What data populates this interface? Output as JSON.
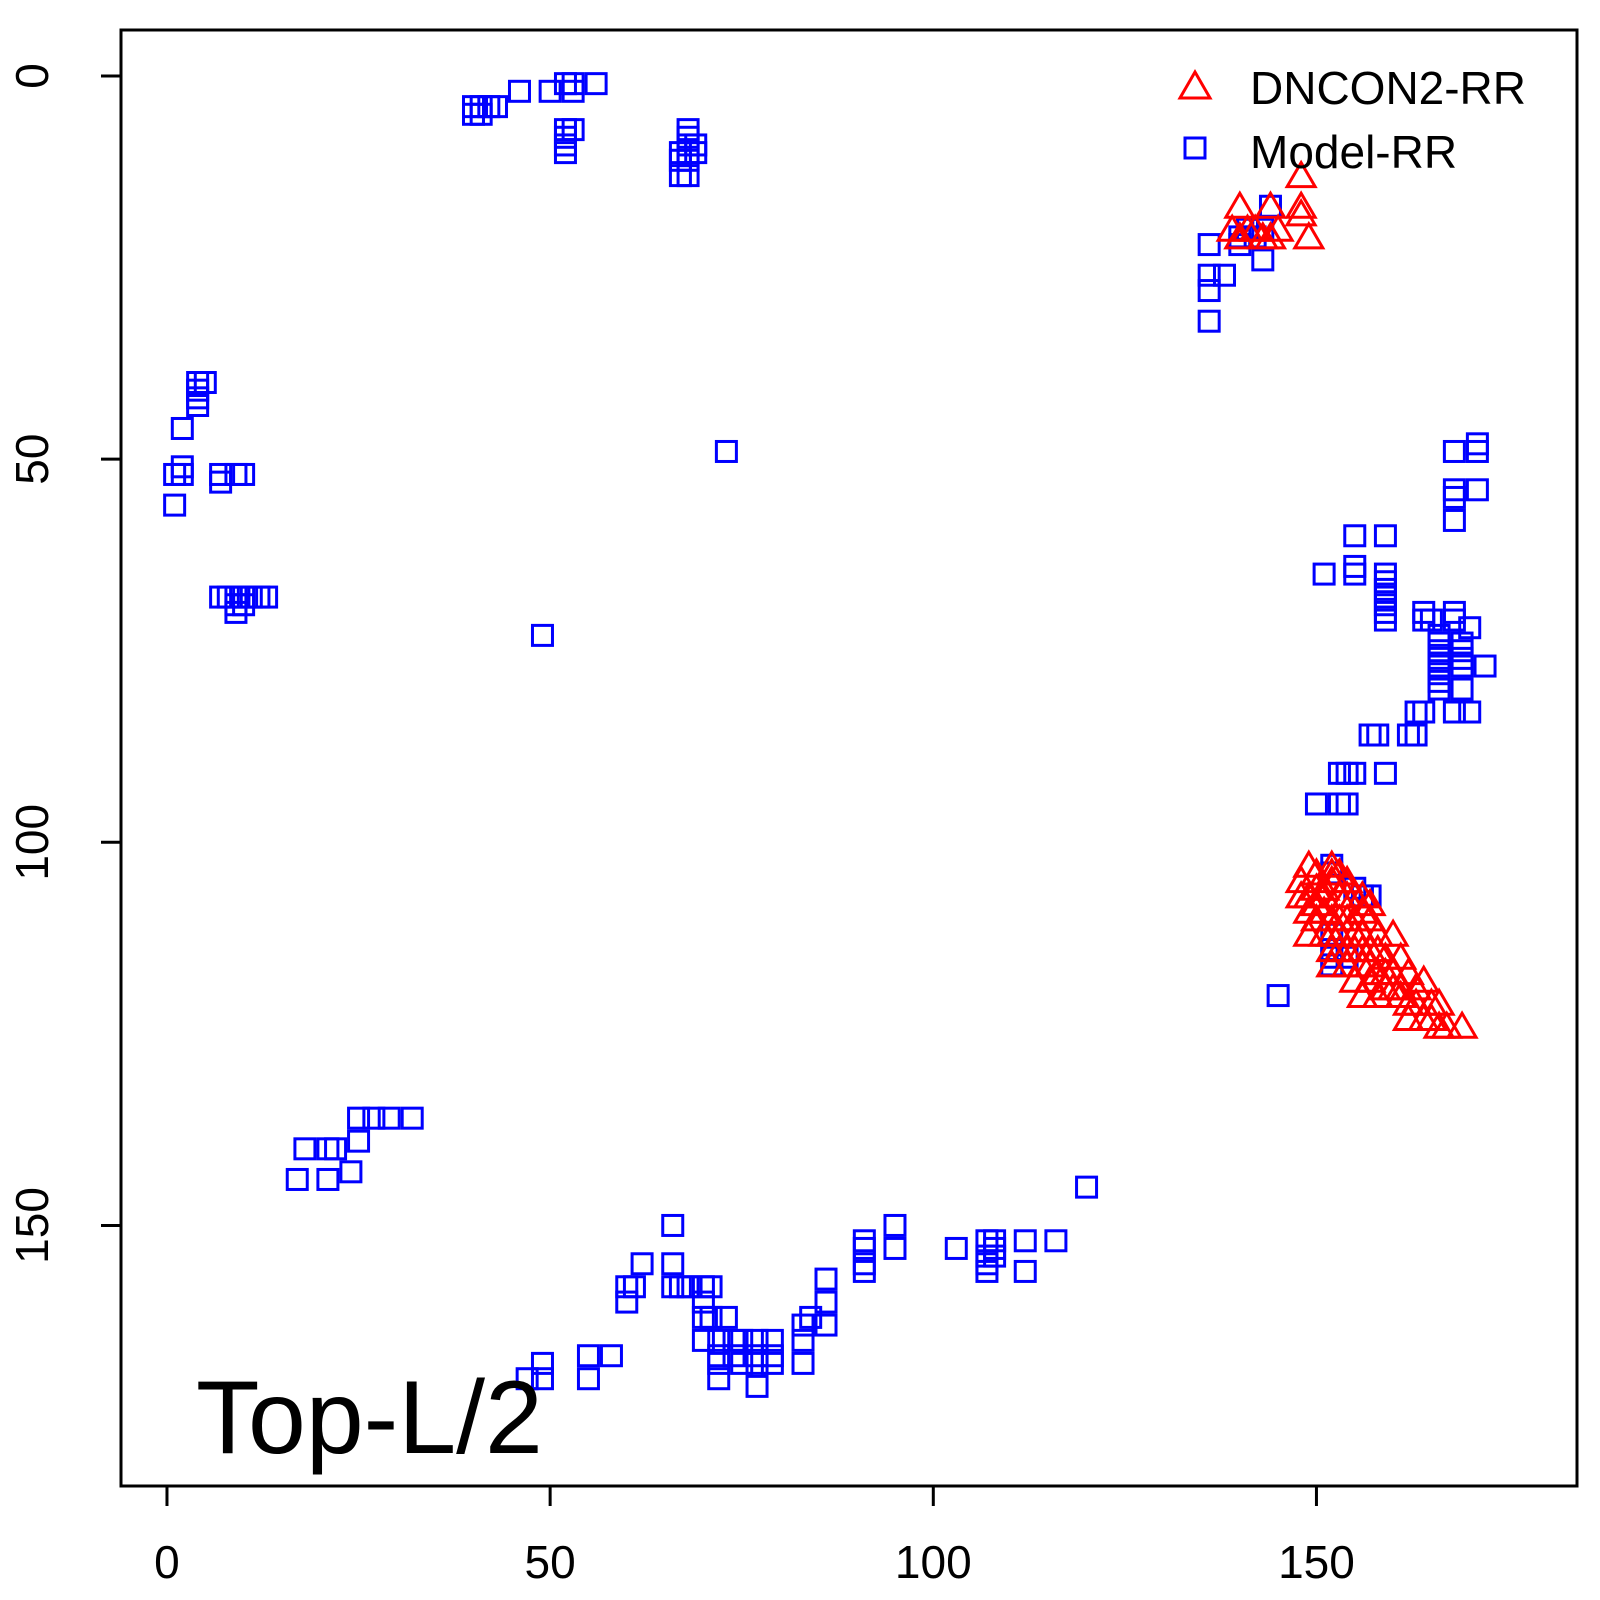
{
  "chart_data": {
    "type": "scatter",
    "title": "",
    "xlabel": "",
    "ylabel": "",
    "plot_label": "Top-L/2",
    "xlim": [
      -6,
      184
    ],
    "ylim": [
      -6,
      184
    ],
    "y_reversed": true,
    "x_ticks": [
      0,
      50,
      100,
      150
    ],
    "y_ticks": [
      0,
      50,
      100,
      150
    ],
    "grid": false,
    "legend_position": "top-right",
    "series": [
      {
        "name": "DNCON2-RR",
        "marker": "triangle",
        "color": "#ff0000",
        "points": [
          [
            148,
            13
          ],
          [
            140,
            17
          ],
          [
            144,
            17
          ],
          [
            148,
            17
          ],
          [
            148,
            18
          ],
          [
            139,
            20
          ],
          [
            141,
            20
          ],
          [
            142,
            20
          ],
          [
            145,
            20
          ],
          [
            149,
            21
          ],
          [
            140,
            21
          ],
          [
            143,
            21
          ],
          [
            144,
            21
          ],
          [
            149,
            103
          ],
          [
            150,
            104
          ],
          [
            152,
            103
          ],
          [
            152,
            104
          ],
          [
            153,
            104
          ],
          [
            148,
            105
          ],
          [
            150,
            106
          ],
          [
            151,
            106
          ],
          [
            152,
            105
          ],
          [
            154,
            105
          ],
          [
            148,
            107
          ],
          [
            149,
            107
          ],
          [
            150,
            108
          ],
          [
            151,
            107
          ],
          [
            153,
            107
          ],
          [
            154,
            107
          ],
          [
            155,
            107
          ],
          [
            156,
            107
          ],
          [
            157,
            108
          ],
          [
            149,
            109
          ],
          [
            150,
            110
          ],
          [
            151,
            109
          ],
          [
            152,
            110
          ],
          [
            153,
            110
          ],
          [
            154,
            110
          ],
          [
            155,
            110
          ],
          [
            156,
            109
          ],
          [
            157,
            110
          ],
          [
            149,
            112
          ],
          [
            151,
            112
          ],
          [
            152,
            112
          ],
          [
            153,
            112
          ],
          [
            155,
            112
          ],
          [
            156,
            112
          ],
          [
            158,
            112
          ],
          [
            160,
            112
          ],
          [
            152,
            114
          ],
          [
            153,
            114
          ],
          [
            154,
            114
          ],
          [
            155,
            114
          ],
          [
            156,
            114
          ],
          [
            157,
            114
          ],
          [
            158,
            114
          ],
          [
            159,
            115
          ],
          [
            161,
            115
          ],
          [
            152,
            116
          ],
          [
            154,
            116
          ],
          [
            156,
            116
          ],
          [
            157,
            116
          ],
          [
            158,
            117
          ],
          [
            159,
            117
          ],
          [
            160,
            117
          ],
          [
            162,
            117
          ],
          [
            155,
            118
          ],
          [
            157,
            118
          ],
          [
            159,
            119
          ],
          [
            160,
            119
          ],
          [
            161,
            119
          ],
          [
            163,
            119
          ],
          [
            164,
            118
          ],
          [
            156,
            120
          ],
          [
            158,
            120
          ],
          [
            161,
            120
          ],
          [
            162,
            121
          ],
          [
            163,
            121
          ],
          [
            165,
            121
          ],
          [
            166,
            121
          ],
          [
            162,
            123
          ],
          [
            164,
            123
          ],
          [
            165,
            123
          ],
          [
            166,
            124
          ],
          [
            167,
            124
          ],
          [
            169,
            124
          ]
        ]
      },
      {
        "name": "Model-RR",
        "marker": "square",
        "color": "#0000ff",
        "points": [
          [
            40,
            4
          ],
          [
            41,
            4
          ],
          [
            42,
            4
          ],
          [
            43,
            4
          ],
          [
            40,
            5
          ],
          [
            41,
            5
          ],
          [
            46,
            2
          ],
          [
            50,
            2
          ],
          [
            52,
            1
          ],
          [
            53,
            1
          ],
          [
            56,
            1
          ],
          [
            53,
            2
          ],
          [
            52,
            7
          ],
          [
            53,
            7
          ],
          [
            52,
            8
          ],
          [
            52,
            9
          ],
          [
            52,
            10
          ],
          [
            68,
            7
          ],
          [
            68,
            8
          ],
          [
            68,
            9
          ],
          [
            69,
            9
          ],
          [
            67,
            10
          ],
          [
            68,
            10
          ],
          [
            69,
            10
          ],
          [
            67,
            11
          ],
          [
            68,
            11
          ],
          [
            67,
            13
          ],
          [
            68,
            13
          ],
          [
            4,
            40
          ],
          [
            4,
            41
          ],
          [
            5,
            40
          ],
          [
            4,
            42
          ],
          [
            4,
            43
          ],
          [
            2,
            46
          ],
          [
            2,
            51
          ],
          [
            1,
            52
          ],
          [
            2,
            52
          ],
          [
            1,
            56
          ],
          [
            7,
            52
          ],
          [
            9,
            52
          ],
          [
            10,
            52
          ],
          [
            7,
            53
          ],
          [
            7,
            68
          ],
          [
            8,
            68
          ],
          [
            9,
            68
          ],
          [
            10,
            68
          ],
          [
            11,
            68
          ],
          [
            12,
            68
          ],
          [
            13,
            68
          ],
          [
            9,
            69
          ],
          [
            10,
            69
          ],
          [
            9,
            70
          ],
          [
            73,
            49
          ],
          [
            49,
            73
          ],
          [
            136,
            22
          ],
          [
            136,
            26
          ],
          [
            136,
            28
          ],
          [
            136,
            32
          ],
          [
            140,
            22
          ],
          [
            140,
            21
          ],
          [
            141,
            20
          ],
          [
            142,
            21
          ],
          [
            143,
            20
          ],
          [
            144,
            17
          ],
          [
            143,
            24
          ],
          [
            138,
            26
          ],
          [
            171,
            49
          ],
          [
            171,
            48
          ],
          [
            168,
            49
          ],
          [
            168,
            54
          ],
          [
            168,
            55
          ],
          [
            168,
            58
          ],
          [
            171,
            54
          ],
          [
            155,
            60
          ],
          [
            159,
            60
          ],
          [
            155,
            64
          ],
          [
            151,
            65
          ],
          [
            155,
            65
          ],
          [
            159,
            65
          ],
          [
            159,
            66
          ],
          [
            159,
            67
          ],
          [
            159,
            68
          ],
          [
            159,
            69
          ],
          [
            159,
            70
          ],
          [
            159,
            71
          ],
          [
            164,
            70
          ],
          [
            164,
            71
          ],
          [
            165,
            71
          ],
          [
            168,
            70
          ],
          [
            168,
            71
          ],
          [
            170,
            72
          ],
          [
            166,
            73
          ],
          [
            166,
            74
          ],
          [
            166,
            75
          ],
          [
            166,
            76
          ],
          [
            169,
            74
          ],
          [
            169,
            75
          ],
          [
            169,
            76
          ],
          [
            169,
            77
          ],
          [
            172,
            77
          ],
          [
            166,
            77
          ],
          [
            166,
            78
          ],
          [
            166,
            79
          ],
          [
            166,
            80
          ],
          [
            169,
            80
          ],
          [
            168,
            83
          ],
          [
            170,
            83
          ],
          [
            164,
            83
          ],
          [
            163,
            83
          ],
          [
            163,
            86
          ],
          [
            162,
            86
          ],
          [
            158,
            86
          ],
          [
            157,
            86
          ],
          [
            159,
            91
          ],
          [
            155,
            91
          ],
          [
            154,
            91
          ],
          [
            153,
            91
          ],
          [
            150,
            95
          ],
          [
            153,
            95
          ],
          [
            154,
            95
          ],
          [
            152,
            103
          ],
          [
            152,
            104
          ],
          [
            155,
            106
          ],
          [
            156,
            107
          ],
          [
            157,
            107
          ],
          [
            152,
            112
          ],
          [
            152,
            114
          ],
          [
            152,
            115
          ],
          [
            152,
            116
          ],
          [
            154,
            115
          ],
          [
            145,
            120
          ],
          [
            25,
            136
          ],
          [
            27,
            136
          ],
          [
            29,
            136
          ],
          [
            32,
            136
          ],
          [
            25,
            139
          ],
          [
            18,
            140
          ],
          [
            21,
            140
          ],
          [
            22,
            140
          ],
          [
            17,
            144
          ],
          [
            21,
            144
          ],
          [
            24,
            143
          ],
          [
            120,
            145
          ],
          [
            49,
            168
          ],
          [
            47,
            170
          ],
          [
            49,
            170
          ],
          [
            55,
            167
          ],
          [
            55,
            170
          ],
          [
            58,
            167
          ],
          [
            60,
            160
          ],
          [
            60,
            158
          ],
          [
            61,
            158
          ],
          [
            62,
            155
          ],
          [
            66,
            155
          ],
          [
            66,
            150
          ],
          [
            67,
            158
          ],
          [
            66,
            158
          ],
          [
            68,
            158
          ],
          [
            70,
            158
          ],
          [
            71,
            158
          ],
          [
            70,
            160
          ],
          [
            70,
            162
          ],
          [
            71,
            162
          ],
          [
            73,
            162
          ],
          [
            70,
            165
          ],
          [
            72,
            165
          ],
          [
            74,
            165
          ],
          [
            75,
            165
          ],
          [
            77,
            165
          ],
          [
            79,
            165
          ],
          [
            83,
            165
          ],
          [
            72,
            167
          ],
          [
            74,
            167
          ],
          [
            77,
            167
          ],
          [
            79,
            167
          ],
          [
            72,
            168
          ],
          [
            75,
            168
          ],
          [
            77,
            168
          ],
          [
            79,
            168
          ],
          [
            83,
            168
          ],
          [
            72,
            170
          ],
          [
            77,
            171
          ],
          [
            83,
            163
          ],
          [
            84,
            162
          ],
          [
            86,
            160
          ],
          [
            86,
            163
          ],
          [
            86,
            157
          ],
          [
            91,
            155
          ],
          [
            91,
            153
          ],
          [
            91,
            152
          ],
          [
            91,
            156
          ],
          [
            95,
            150
          ],
          [
            95,
            153
          ],
          [
            103,
            153
          ],
          [
            107,
            152
          ],
          [
            107,
            154
          ],
          [
            107,
            155
          ],
          [
            107,
            156
          ],
          [
            108,
            152
          ],
          [
            108,
            153
          ],
          [
            108,
            154
          ],
          [
            112,
            152
          ],
          [
            112,
            156
          ],
          [
            116,
            152
          ]
        ]
      }
    ]
  }
}
